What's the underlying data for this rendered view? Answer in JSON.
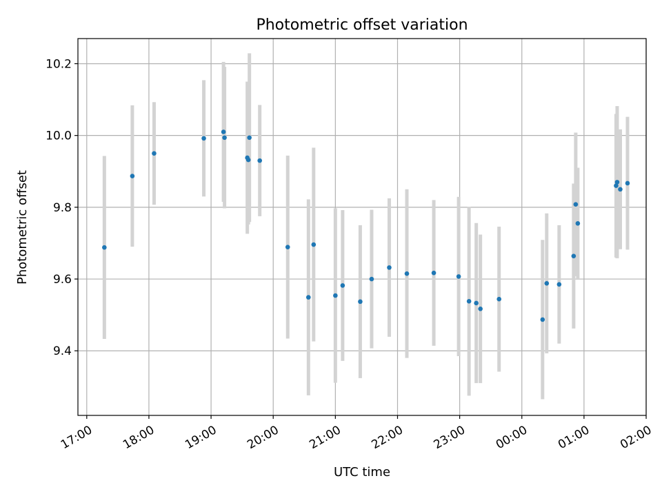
{
  "chart_data": {
    "type": "scatter",
    "title": "Photometric offset variation",
    "xlabel": "UTC time",
    "ylabel": "Photometric offset",
    "x_start_date": "2000-01-01",
    "xlim": [
      "17:00",
      "02:00"
    ],
    "ylim": [
      9.22,
      10.27
    ],
    "grid": true,
    "x_ticks": [
      "17:00",
      "18:00",
      "19:00",
      "20:00",
      "21:00",
      "22:00",
      "23:00",
      "00:00",
      "01:00",
      "02:00"
    ],
    "y_ticks": [
      9.4,
      9.6,
      9.8,
      10.0,
      10.2
    ],
    "y_tick_labels": [
      "9.4",
      "9.6",
      "9.8",
      "10.0",
      "10.2"
    ],
    "points": [
      {
        "x": "17:17",
        "y": 9.688,
        "err": 0.255
      },
      {
        "x": "17:44",
        "y": 9.887,
        "err": 0.197
      },
      {
        "x": "18:05",
        "y": 9.95,
        "err": 0.143
      },
      {
        "x": "18:53",
        "y": 9.992,
        "err": 0.162
      },
      {
        "x": "19:12",
        "y": 10.01,
        "err": 0.195
      },
      {
        "x": "19:13",
        "y": 9.994,
        "err": 0.197
      },
      {
        "x": "19:35",
        "y": 9.938,
        "err": 0.212
      },
      {
        "x": "19:36",
        "y": 9.932,
        "err": 0.18
      },
      {
        "x": "19:37",
        "y": 9.994,
        "err": 0.235
      },
      {
        "x": "19:47",
        "y": 9.93,
        "err": 0.155
      },
      {
        "x": "20:14",
        "y": 9.689,
        "err": 0.255
      },
      {
        "x": "20:34",
        "y": 9.549,
        "err": 0.273
      },
      {
        "x": "20:39",
        "y": 9.696,
        "err": 0.27
      },
      {
        "x": "21:00",
        "y": 9.554,
        "err": 0.243
      },
      {
        "x": "21:07",
        "y": 9.582,
        "err": 0.21
      },
      {
        "x": "21:24",
        "y": 9.537,
        "err": 0.213
      },
      {
        "x": "21:35",
        "y": 9.6,
        "err": 0.193
      },
      {
        "x": "21:52",
        "y": 9.632,
        "err": 0.193
      },
      {
        "x": "22:09",
        "y": 9.615,
        "err": 0.235
      },
      {
        "x": "22:35",
        "y": 9.617,
        "err": 0.203
      },
      {
        "x": "22:59",
        "y": 9.607,
        "err": 0.222
      },
      {
        "x": "23:09",
        "y": 9.538,
        "err": 0.263
      },
      {
        "x": "23:16",
        "y": 9.533,
        "err": 0.223
      },
      {
        "x": "23:20",
        "y": 9.517,
        "err": 0.207
      },
      {
        "x": "23:38",
        "y": 9.544,
        "err": 0.202
      },
      {
        "x": "00:20",
        "y": 9.487,
        "err": 0.222
      },
      {
        "x": "00:24",
        "y": 9.588,
        "err": 0.195
      },
      {
        "x": "00:36",
        "y": 9.585,
        "err": 0.165
      },
      {
        "x": "00:50",
        "y": 9.664,
        "err": 0.202
      },
      {
        "x": "00:52",
        "y": 9.808,
        "err": 0.2
      },
      {
        "x": "00:54",
        "y": 9.755,
        "err": 0.155
      },
      {
        "x": "01:31",
        "y": 9.86,
        "err": 0.2
      },
      {
        "x": "01:32",
        "y": 9.87,
        "err": 0.212
      },
      {
        "x": "01:35",
        "y": 9.85,
        "err": 0.167
      },
      {
        "x": "01:42",
        "y": 9.867,
        "err": 0.185
      }
    ]
  }
}
